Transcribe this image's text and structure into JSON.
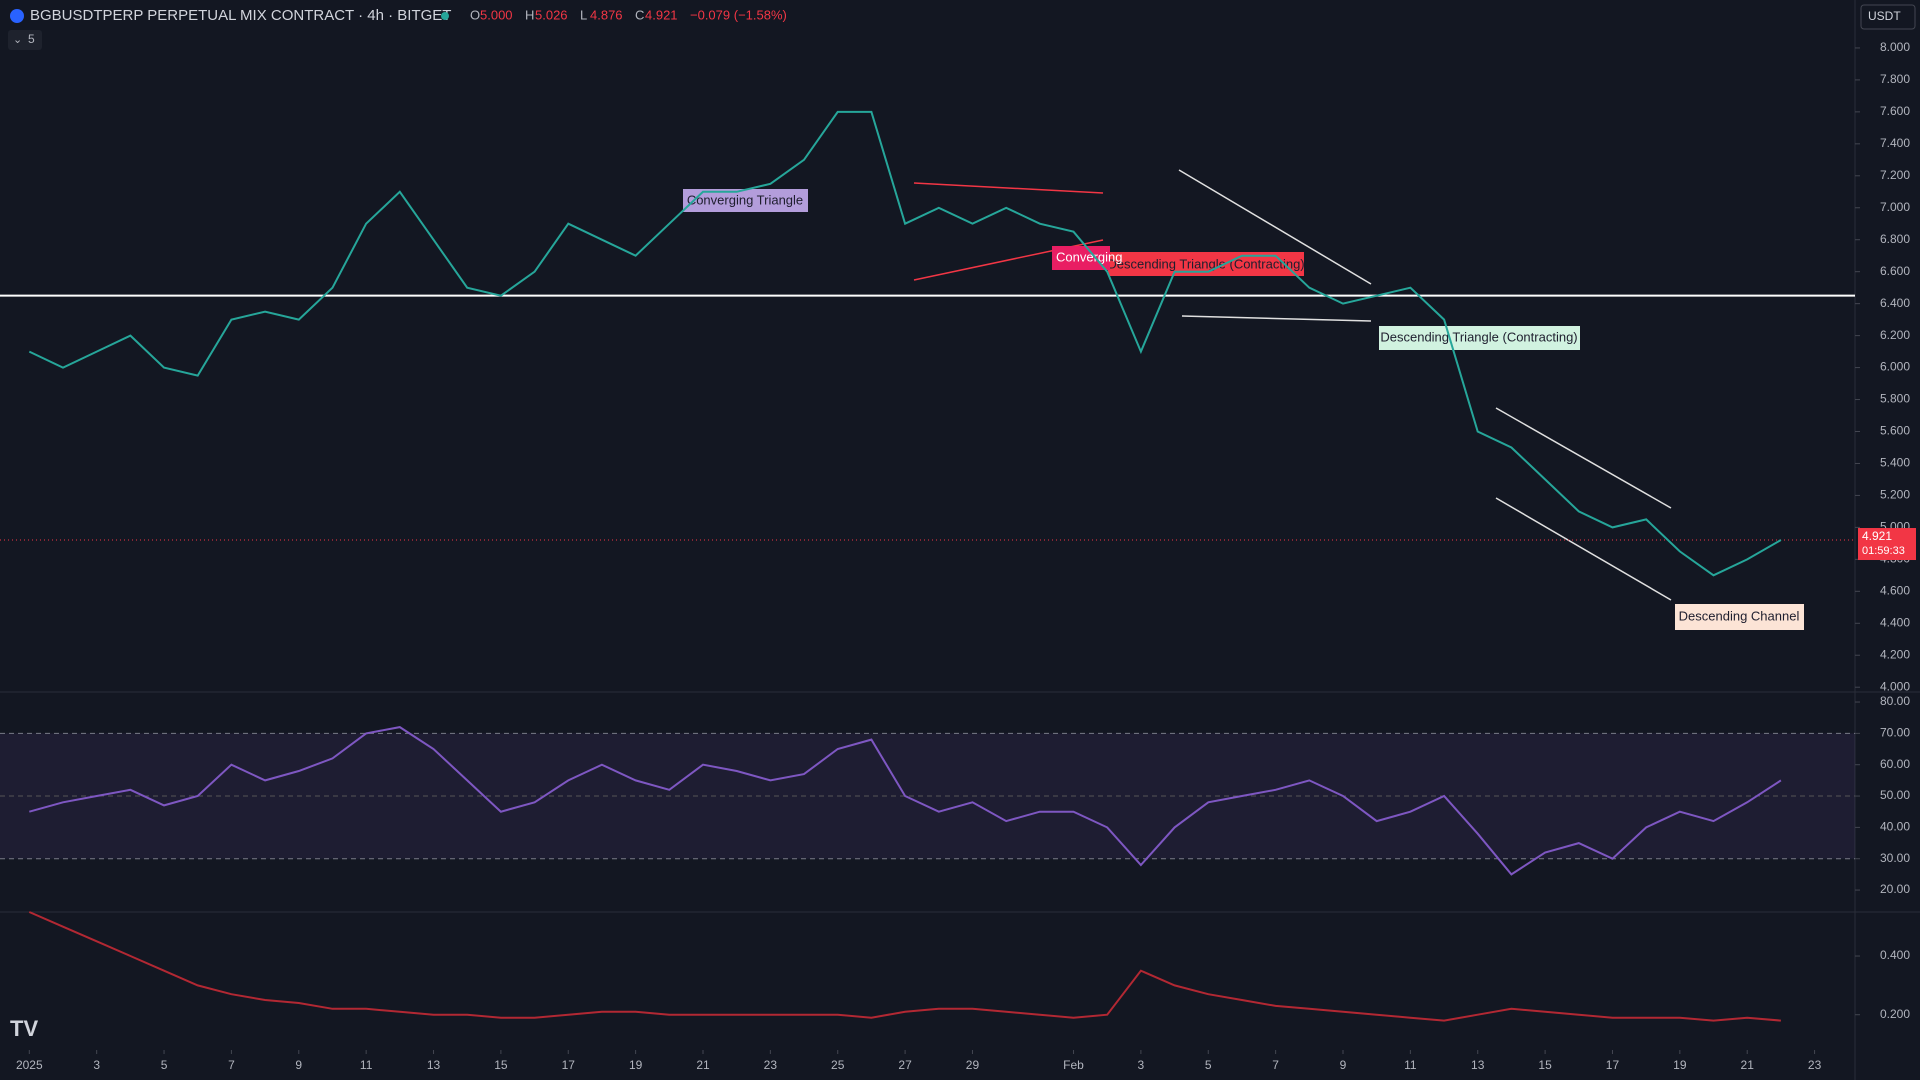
{
  "header": {
    "symbol": "BGBUSDTPERP PERPETUAL MIX CONTRACT · 4h · BITGET",
    "ohlc": [
      {
        "key": "O",
        "text": "5.000"
      },
      {
        "key": "H",
        "text": "5.026"
      },
      {
        "key": "L",
        "text": "4.876"
      },
      {
        "key": "C",
        "text": "4.921"
      }
    ],
    "change": "−0.079 (−1.58%)",
    "currency": "USDT",
    "indicator_count": "5"
  },
  "price_tag": {
    "price": "4.921",
    "countdown": "01:59:33"
  },
  "patterns": [
    "Converging Triangle",
    "Converging",
    "Descending Triangle (Contracting)",
    "Descending Triangle (Contracting)",
    "Descending Channel"
  ],
  "chart_data": [
    {
      "type": "line",
      "name": "price",
      "color": "#26a69a",
      "xlim": [
        -0.87,
        54.2
      ],
      "xticks": [
        {
          "value": 0,
          "label": "2025"
        },
        {
          "value": 2,
          "label": "3"
        },
        {
          "value": 4,
          "label": "5"
        },
        {
          "value": 6,
          "label": "7"
        },
        {
          "value": 8,
          "label": "9"
        },
        {
          "value": 10,
          "label": "11"
        },
        {
          "value": 12,
          "label": "13"
        },
        {
          "value": 14,
          "label": "15"
        },
        {
          "value": 16,
          "label": "17"
        },
        {
          "value": 18,
          "label": "19"
        },
        {
          "value": 20,
          "label": "21"
        },
        {
          "value": 22,
          "label": "23"
        },
        {
          "value": 24,
          "label": "25"
        },
        {
          "value": 26,
          "label": "27"
        },
        {
          "value": 28,
          "label": "29"
        },
        {
          "value": 31,
          "label": "Feb"
        },
        {
          "value": 33,
          "label": "3"
        },
        {
          "value": 35,
          "label": "5"
        },
        {
          "value": 37,
          "label": "7"
        },
        {
          "value": 39,
          "label": "9"
        },
        {
          "value": 41,
          "label": "11"
        },
        {
          "value": 43,
          "label": "13"
        },
        {
          "value": 45,
          "label": "15"
        },
        {
          "value": 47,
          "label": "17"
        },
        {
          "value": 49,
          "label": "19"
        },
        {
          "value": 51,
          "label": "21"
        },
        {
          "value": 53,
          "label": "23"
        }
      ],
      "ylim": [
        3.97,
        8.3
      ],
      "yticks": [
        {
          "value": 4,
          "label": "4.000"
        },
        {
          "value": 4.2,
          "label": "4.200"
        },
        {
          "value": 4.4,
          "label": "4.400"
        },
        {
          "value": 4.6,
          "label": "4.600"
        },
        {
          "value": 4.8,
          "label": "4.800"
        },
        {
          "value": 5,
          "label": "5.000"
        },
        {
          "value": 5.2,
          "label": "5.200"
        },
        {
          "value": 5.4,
          "label": "5.400"
        },
        {
          "value": 5.6,
          "label": "5.600"
        },
        {
          "value": 5.8,
          "label": "5.800"
        },
        {
          "value": 6,
          "label": "6.000"
        },
        {
          "value": 6.2,
          "label": "6.200"
        },
        {
          "value": 6.4,
          "label": "6.400"
        },
        {
          "value": 6.6,
          "label": "6.600"
        },
        {
          "value": 6.8,
          "label": "6.800"
        },
        {
          "value": 7,
          "label": "7.000"
        },
        {
          "value": 7.2,
          "label": "7.200"
        },
        {
          "value": 7.4,
          "label": "7.400"
        },
        {
          "value": 7.6,
          "label": "7.600"
        },
        {
          "value": 7.8,
          "label": "7.800"
        },
        {
          "value": 8,
          "label": "8.000"
        }
      ],
      "level": 6.45,
      "last": 4.921,
      "grid": false,
      "values": [
        6.1,
        6.0,
        6.1,
        6.2,
        6.0,
        5.95,
        6.3,
        6.35,
        6.3,
        6.5,
        6.9,
        7.1,
        6.8,
        6.5,
        6.45,
        6.6,
        6.9,
        6.8,
        6.7,
        6.9,
        7.1,
        7.1,
        7.15,
        7.3,
        7.6,
        7.6,
        6.9,
        7.0,
        6.9,
        7.0,
        6.9,
        6.85,
        6.6,
        6.1,
        6.6,
        6.6,
        6.7,
        6.7,
        6.5,
        6.4,
        6.45,
        6.5,
        6.3,
        5.6,
        5.5,
        5.3,
        5.1,
        5.0,
        5.05,
        4.85,
        4.7,
        4.8,
        4.921
      ]
    },
    {
      "type": "line",
      "name": "rsi",
      "color": "#7e57c2",
      "ylim": [
        13,
        83.2
      ],
      "yticks": [
        {
          "value": 20,
          "label": "20.00"
        },
        {
          "value": 30,
          "label": "30.00"
        },
        {
          "value": 40,
          "label": "40.00"
        },
        {
          "value": 50,
          "label": "50.00"
        },
        {
          "value": 60,
          "label": "60.00"
        },
        {
          "value": 70,
          "label": "70.00"
        },
        {
          "value": 80,
          "label": "80.00"
        }
      ],
      "band": [
        30,
        70
      ],
      "midline": 50,
      "values": [
        45,
        48,
        50,
        52,
        47,
        50,
        60,
        55,
        58,
        62,
        70,
        72,
        65,
        55,
        45,
        48,
        55,
        60,
        55,
        52,
        60,
        58,
        55,
        57,
        65,
        68,
        50,
        45,
        48,
        42,
        45,
        45,
        40,
        28,
        40,
        48,
        50,
        52,
        55,
        50,
        42,
        45,
        50,
        38,
        25,
        32,
        35,
        30,
        40,
        45,
        42,
        48,
        55
      ]
    },
    {
      "type": "line",
      "name": "indicator",
      "color": "#b22833",
      "ylim": [
        0.09,
        0.55
      ],
      "yticks": [
        {
          "value": 0.2,
          "label": "0.200"
        },
        {
          "value": 0.4,
          "label": "0.400"
        }
      ],
      "values": [
        0.55,
        0.5,
        0.45,
        0.4,
        0.35,
        0.3,
        0.27,
        0.25,
        0.24,
        0.22,
        0.22,
        0.21,
        0.2,
        0.2,
        0.19,
        0.19,
        0.2,
        0.21,
        0.21,
        0.2,
        0.2,
        0.2,
        0.2,
        0.2,
        0.2,
        0.19,
        0.21,
        0.22,
        0.22,
        0.21,
        0.2,
        0.19,
        0.2,
        0.35,
        0.3,
        0.27,
        0.25,
        0.23,
        0.22,
        0.21,
        0.2,
        0.19,
        0.18,
        0.2,
        0.22,
        0.21,
        0.2,
        0.19,
        0.19,
        0.19,
        0.18,
        0.19,
        0.18
      ]
    }
  ]
}
